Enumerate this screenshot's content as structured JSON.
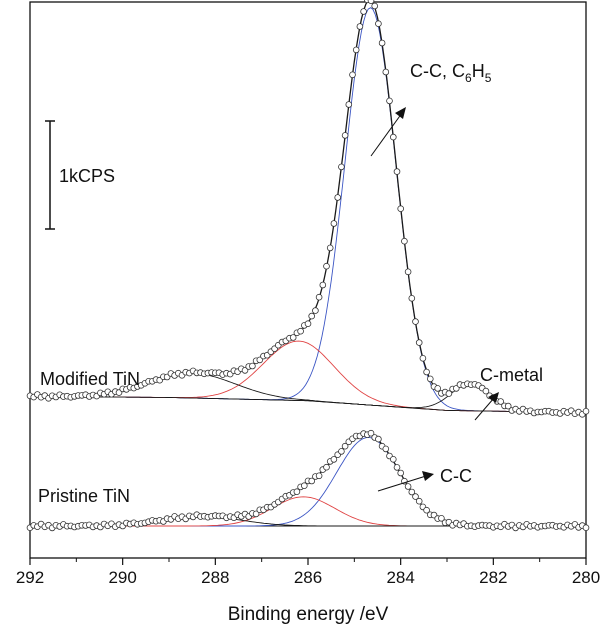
{
  "chart_data": {
    "type": "line",
    "title": "",
    "xlabel": "Binding energy /eV",
    "ylabel": "",
    "xlim": [
      292,
      280
    ],
    "x_reversed": true,
    "x_ticks": [
      292,
      290,
      288,
      286,
      284,
      282,
      280
    ],
    "y_axis_shown": false,
    "scale_bar": {
      "label": "1kCPS",
      "length_cps": 1000
    },
    "grid": false,
    "legend": "none",
    "colors": {
      "fit": "#1a1a1a",
      "c_c": "#3b55c4",
      "c_ox": "#e04545",
      "c_metal": "#1a1a1a",
      "background": "#1a1a1a",
      "points": "#333333"
    },
    "spectra": [
      {
        "name": "Modified TiN",
        "offset_cps": 1200,
        "background_cps": {
          "x": [
            292,
            289,
            286,
            284,
            283,
            280
          ],
          "y": [
            0,
            -10,
            -40,
            -100,
            -130,
            -150
          ]
        },
        "components": [
          {
            "name": "C-C, C6H5",
            "color_key": "c_c",
            "center": 284.65,
            "height_cps": 3680,
            "fwhm": 1.3
          },
          {
            "name": "",
            "color_key": "c_ox",
            "center": 286.2,
            "height_cps": 550,
            "fwhm": 1.8
          },
          {
            "name": "",
            "color_key": "background",
            "center": 288.5,
            "height_cps": 230,
            "fwhm": 2.2
          },
          {
            "name": "C-metal",
            "color_key": "c_metal",
            "center": 282.5,
            "height_cps": 250,
            "fwhm": 1.0
          }
        ]
      },
      {
        "name": "Pristine TiN",
        "offset_cps": 0,
        "background_cps": {
          "x": [
            292,
            280
          ],
          "y": [
            0,
            0
          ]
        },
        "components": [
          {
            "name": "C-C",
            "color_key": "c_c",
            "center": 284.7,
            "height_cps": 820,
            "fwhm": 1.6
          },
          {
            "name": "",
            "color_key": "c_ox",
            "center": 286.1,
            "height_cps": 270,
            "fwhm": 1.6
          },
          {
            "name": "",
            "color_key": "background",
            "center": 288.3,
            "height_cps": 90,
            "fwhm": 2.0
          }
        ]
      }
    ],
    "annotations": [
      {
        "id": "cc-c6h5",
        "text": "C-C, C",
        "sub1": "6",
        "mid": "H",
        "sub2": "5"
      },
      {
        "id": "c-metal",
        "text": "C-metal"
      },
      {
        "id": "c-c",
        "text": "C-C"
      },
      {
        "id": "modified",
        "text": "Modified TiN"
      },
      {
        "id": "pristine",
        "text": "Pristine TiN"
      }
    ]
  }
}
